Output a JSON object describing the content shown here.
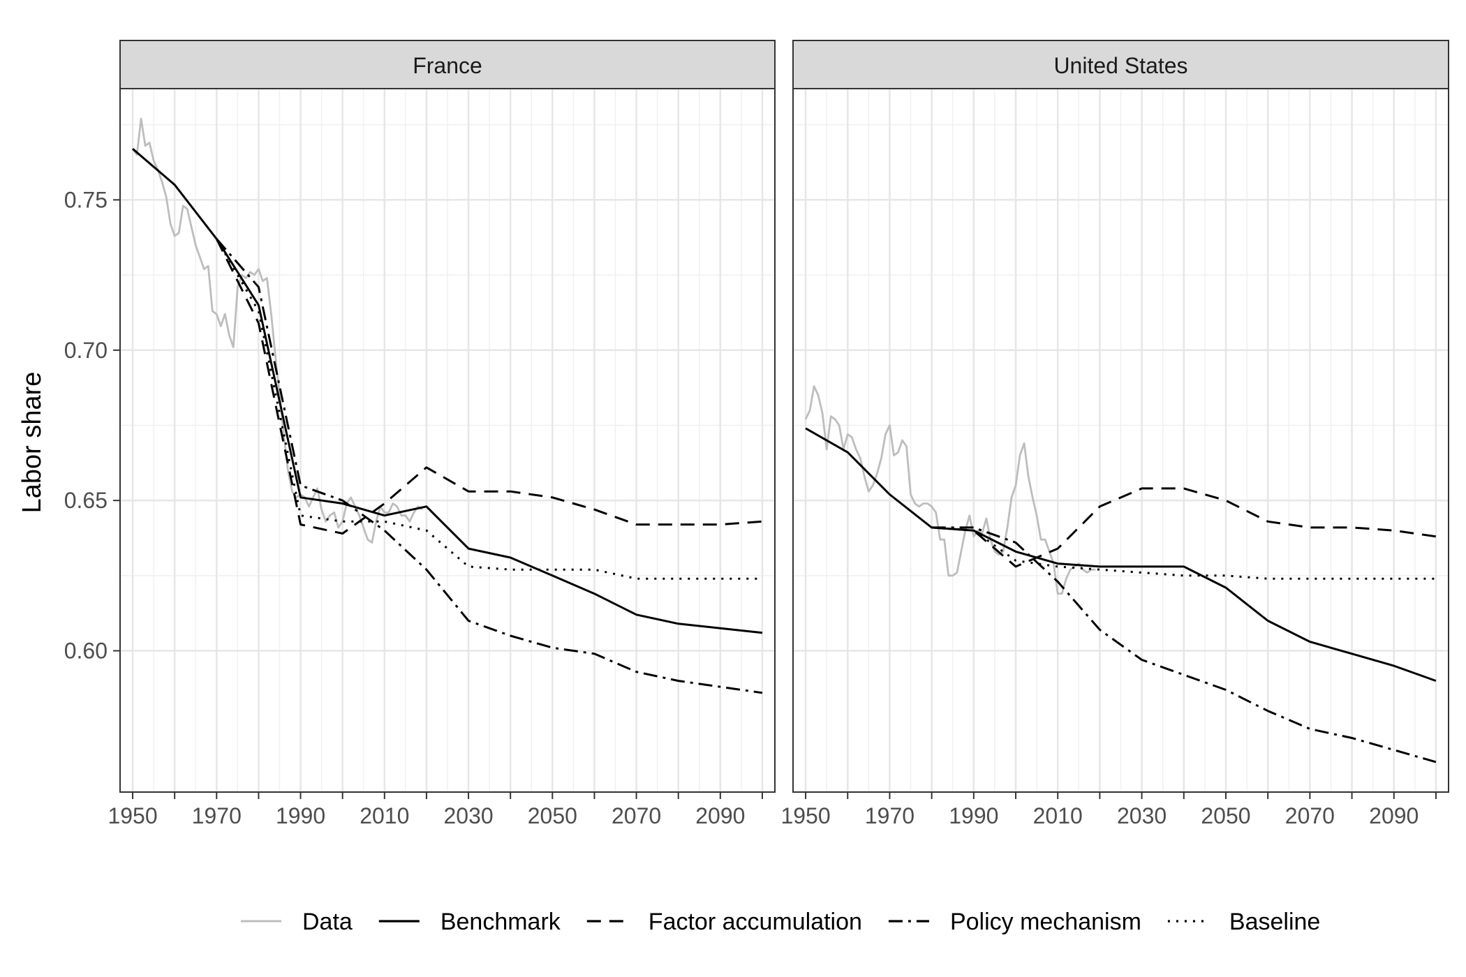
{
  "chart_data": {
    "type": "line",
    "ylabel": "Labor share",
    "xlabel": "",
    "xlim": [
      1947,
      2103
    ],
    "ylim": [
      0.553,
      0.787
    ],
    "x_ticks": [
      1950,
      1970,
      1990,
      2010,
      2030,
      2050,
      2070,
      2090
    ],
    "x_minor_ticks": [
      1960,
      1980,
      2000,
      2020,
      2040,
      2060,
      2080,
      2100
    ],
    "y_ticks": [
      0.6,
      0.65,
      0.7,
      0.75
    ],
    "y_tick_labels": [
      "0.60",
      "0.65",
      "0.70",
      "0.75"
    ],
    "grid": true,
    "legend_position": "bottom",
    "legend": [
      {
        "key": "data",
        "label": "Data",
        "color": "#bdbdbd",
        "dash": "solid"
      },
      {
        "key": "benchmark",
        "label": "Benchmark",
        "color": "#000000",
        "dash": "solid"
      },
      {
        "key": "factor",
        "label": "Factor accumulation",
        "color": "#000000",
        "dash": "dashed"
      },
      {
        "key": "policy",
        "label": "Policy mechanism",
        "color": "#000000",
        "dash": "dotdash"
      },
      {
        "key": "baseline",
        "label": "Baseline",
        "color": "#000000",
        "dash": "dotted"
      }
    ],
    "panels": [
      {
        "title": "France",
        "series": {
          "data": [
            [
              1950,
              0.767
            ],
            [
              1951,
              0.765
            ],
            [
              1952,
              0.777
            ],
            [
              1953,
              0.768
            ],
            [
              1954,
              0.769
            ],
            [
              1955,
              0.763
            ],
            [
              1956,
              0.76
            ],
            [
              1957,
              0.756
            ],
            [
              1958,
              0.751
            ],
            [
              1959,
              0.742
            ],
            [
              1960,
              0.738
            ],
            [
              1961,
              0.739
            ],
            [
              1962,
              0.748
            ],
            [
              1963,
              0.747
            ],
            [
              1964,
              0.741
            ],
            [
              1965,
              0.735
            ],
            [
              1966,
              0.731
            ],
            [
              1967,
              0.727
            ],
            [
              1968,
              0.728
            ],
            [
              1969,
              0.713
            ],
            [
              1970,
              0.712
            ],
            [
              1971,
              0.708
            ],
            [
              1972,
              0.712
            ],
            [
              1973,
              0.705
            ],
            [
              1974,
              0.701
            ],
            [
              1975,
              0.721
            ],
            [
              1976,
              0.725
            ],
            [
              1977,
              0.724
            ],
            [
              1978,
              0.726
            ],
            [
              1979,
              0.725
            ],
            [
              1980,
              0.727
            ],
            [
              1981,
              0.723
            ],
            [
              1982,
              0.724
            ],
            [
              1983,
              0.712
            ],
            [
              1984,
              0.698
            ],
            [
              1985,
              0.685
            ],
            [
              1986,
              0.672
            ],
            [
              1987,
              0.66
            ],
            [
              1988,
              0.653
            ],
            [
              1989,
              0.651
            ],
            [
              1990,
              0.652
            ],
            [
              1991,
              0.651
            ],
            [
              1992,
              0.648
            ],
            [
              1993,
              0.651
            ],
            [
              1994,
              0.654
            ],
            [
              1995,
              0.647
            ],
            [
              1996,
              0.643
            ],
            [
              1997,
              0.645
            ],
            [
              1998,
              0.646
            ],
            [
              1999,
              0.641
            ],
            [
              2000,
              0.643
            ],
            [
              2001,
              0.649
            ],
            [
              2002,
              0.651
            ],
            [
              2003,
              0.648
            ],
            [
              2004,
              0.645
            ],
            [
              2005,
              0.641
            ],
            [
              2006,
              0.637
            ],
            [
              2007,
              0.636
            ],
            [
              2008,
              0.643
            ],
            [
              2009,
              0.648
            ],
            [
              2010,
              0.646
            ],
            [
              2011,
              0.646
            ],
            [
              2012,
              0.649
            ],
            [
              2013,
              0.648
            ],
            [
              2014,
              0.645
            ],
            [
              2015,
              0.645
            ],
            [
              2016,
              0.643
            ],
            [
              2017,
              0.646
            ],
            [
              2018,
              0.648
            ],
            [
              2019,
              0.647
            ]
          ],
          "benchmark": [
            [
              1950,
              0.767
            ],
            [
              1960,
              0.755
            ],
            [
              1970,
              0.737
            ],
            [
              1980,
              0.715
            ],
            [
              1990,
              0.651
            ],
            [
              2000,
              0.649
            ],
            [
              2010,
              0.645
            ],
            [
              2020,
              0.648
            ],
            [
              2030,
              0.634
            ],
            [
              2040,
              0.631
            ],
            [
              2050,
              0.625
            ],
            [
              2060,
              0.619
            ],
            [
              2070,
              0.612
            ],
            [
              2080,
              0.609
            ],
            [
              2090,
              0.6075
            ],
            [
              2100,
              0.606
            ]
          ],
          "factor": [
            [
              1970,
              0.737
            ],
            [
              1980,
              0.709
            ],
            [
              1990,
              0.642
            ],
            [
              2000,
              0.639
            ],
            [
              2010,
              0.649
            ],
            [
              2020,
              0.661
            ],
            [
              2030,
              0.653
            ],
            [
              2040,
              0.653
            ],
            [
              2050,
              0.651
            ],
            [
              2060,
              0.647
            ],
            [
              2070,
              0.642
            ],
            [
              2080,
              0.642
            ],
            [
              2090,
              0.642
            ],
            [
              2100,
              0.643
            ]
          ],
          "policy": [
            [
              1970,
              0.737
            ],
            [
              1980,
              0.721
            ],
            [
              1990,
              0.655
            ],
            [
              2000,
              0.65
            ],
            [
              2010,
              0.64
            ],
            [
              2020,
              0.627
            ],
            [
              2030,
              0.61
            ],
            [
              2040,
              0.605
            ],
            [
              2050,
              0.601
            ],
            [
              2060,
              0.599
            ],
            [
              2070,
              0.593
            ],
            [
              2080,
              0.59
            ],
            [
              2090,
              0.588
            ],
            [
              2100,
              0.586
            ]
          ],
          "baseline": [
            [
              1970,
              0.737
            ],
            [
              1980,
              0.713
            ],
            [
              1990,
              0.645
            ],
            [
              2000,
              0.643
            ],
            [
              2010,
              0.643
            ],
            [
              2020,
              0.64
            ],
            [
              2030,
              0.628
            ],
            [
              2040,
              0.627
            ],
            [
              2050,
              0.627
            ],
            [
              2060,
              0.627
            ],
            [
              2070,
              0.624
            ],
            [
              2080,
              0.624
            ],
            [
              2090,
              0.624
            ],
            [
              2100,
              0.624
            ]
          ]
        }
      },
      {
        "title": "United States",
        "series": {
          "data": [
            [
              1950,
              0.677
            ],
            [
              1951,
              0.68
            ],
            [
              1952,
              0.688
            ],
            [
              1953,
              0.685
            ],
            [
              1954,
              0.679
            ],
            [
              1955,
              0.667
            ],
            [
              1956,
              0.678
            ],
            [
              1957,
              0.677
            ],
            [
              1958,
              0.675
            ],
            [
              1959,
              0.667
            ],
            [
              1960,
              0.672
            ],
            [
              1961,
              0.671
            ],
            [
              1962,
              0.667
            ],
            [
              1963,
              0.664
            ],
            [
              1964,
              0.658
            ],
            [
              1965,
              0.653
            ],
            [
              1966,
              0.655
            ],
            [
              1967,
              0.659
            ],
            [
              1968,
              0.664
            ],
            [
              1969,
              0.672
            ],
            [
              1970,
              0.675
            ],
            [
              1971,
              0.665
            ],
            [
              1972,
              0.666
            ],
            [
              1973,
              0.67
            ],
            [
              1974,
              0.668
            ],
            [
              1975,
              0.652
            ],
            [
              1976,
              0.649
            ],
            [
              1977,
              0.648
            ],
            [
              1978,
              0.649
            ],
            [
              1979,
              0.649
            ],
            [
              1980,
              0.648
            ],
            [
              1981,
              0.646
            ],
            [
              1982,
              0.637
            ],
            [
              1983,
              0.637
            ],
            [
              1984,
              0.625
            ],
            [
              1985,
              0.625
            ],
            [
              1986,
              0.626
            ],
            [
              1987,
              0.633
            ],
            [
              1988,
              0.64
            ],
            [
              1989,
              0.645
            ],
            [
              1990,
              0.638
            ],
            [
              1991,
              0.64
            ],
            [
              1992,
              0.639
            ],
            [
              1993,
              0.644
            ],
            [
              1994,
              0.637
            ],
            [
              1995,
              0.633
            ],
            [
              1996,
              0.632
            ],
            [
              1997,
              0.633
            ],
            [
              1998,
              0.641
            ],
            [
              1999,
              0.651
            ],
            [
              2000,
              0.655
            ],
            [
              2001,
              0.665
            ],
            [
              2002,
              0.669
            ],
            [
              2003,
              0.658
            ],
            [
              2004,
              0.651
            ],
            [
              2005,
              0.645
            ],
            [
              2006,
              0.637
            ],
            [
              2007,
              0.637
            ],
            [
              2008,
              0.633
            ],
            [
              2009,
              0.629
            ],
            [
              2010,
              0.619
            ],
            [
              2011,
              0.619
            ],
            [
              2012,
              0.624
            ],
            [
              2013,
              0.627
            ],
            [
              2014,
              0.628
            ],
            [
              2015,
              0.629
            ],
            [
              2016,
              0.627
            ],
            [
              2017,
              0.626
            ],
            [
              2018,
              0.627
            ],
            [
              2019,
              0.627
            ]
          ],
          "benchmark": [
            [
              1950,
              0.674
            ],
            [
              1960,
              0.666
            ],
            [
              1970,
              0.652
            ],
            [
              1980,
              0.641
            ],
            [
              1990,
              0.64
            ],
            [
              2000,
              0.633
            ],
            [
              2010,
              0.629
            ],
            [
              2020,
              0.628
            ],
            [
              2030,
              0.628
            ],
            [
              2040,
              0.628
            ],
            [
              2050,
              0.621
            ],
            [
              2060,
              0.61
            ],
            [
              2070,
              0.603
            ],
            [
              2080,
              0.599
            ],
            [
              2090,
              0.595
            ],
            [
              2100,
              0.59
            ]
          ],
          "factor": [
            [
              1980,
              0.641
            ],
            [
              1990,
              0.64
            ],
            [
              2000,
              0.628
            ],
            [
              2010,
              0.634
            ],
            [
              2020,
              0.648
            ],
            [
              2030,
              0.654
            ],
            [
              2040,
              0.654
            ],
            [
              2050,
              0.65
            ],
            [
              2060,
              0.643
            ],
            [
              2070,
              0.641
            ],
            [
              2080,
              0.641
            ],
            [
              2090,
              0.64
            ],
            [
              2100,
              0.638
            ]
          ],
          "policy": [
            [
              1980,
              0.641
            ],
            [
              1990,
              0.641
            ],
            [
              2000,
              0.636
            ],
            [
              2010,
              0.623
            ],
            [
              2020,
              0.607
            ],
            [
              2030,
              0.597
            ],
            [
              2040,
              0.592
            ],
            [
              2050,
              0.587
            ],
            [
              2060,
              0.58
            ],
            [
              2070,
              0.574
            ],
            [
              2080,
              0.571
            ],
            [
              2090,
              0.567
            ],
            [
              2100,
              0.563
            ]
          ],
          "baseline": [
            [
              1980,
              0.641
            ],
            [
              1990,
              0.64
            ],
            [
              2000,
              0.63
            ],
            [
              2010,
              0.628
            ],
            [
              2020,
              0.627
            ],
            [
              2030,
              0.626
            ],
            [
              2040,
              0.625
            ],
            [
              2050,
              0.625
            ],
            [
              2060,
              0.624
            ],
            [
              2070,
              0.624
            ],
            [
              2080,
              0.624
            ],
            [
              2090,
              0.624
            ],
            [
              2100,
              0.624
            ]
          ]
        }
      }
    ]
  }
}
